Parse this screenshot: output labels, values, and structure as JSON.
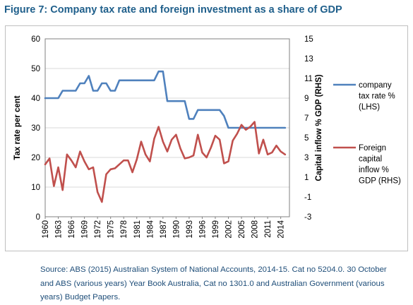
{
  "figure_title": "Figure 7: Company tax rate and foreign investment as a share of GDP",
  "source_note": "Source: ABS (2015) Australian System of National Accounts, 2014-15. Cat no 5204.0. 30 October and ABS (various years) Year Book Australia, Cat no 1301.0 and Australian Government (various years) Budget Papers.",
  "colors": {
    "tax": "#4f81bd",
    "capital": "#c0504d",
    "grid": "#d9d9d9",
    "axis": "#808080"
  },
  "chart_data": {
    "type": "line",
    "title": "",
    "ylabel": "Tax rate per cent",
    "y2label": "Capital inflow % GDP (RHS)",
    "ylim": [
      0,
      60
    ],
    "y2lim": [
      -3,
      15
    ],
    "yticks": [
      "0",
      "10",
      "20",
      "30",
      "40",
      "50",
      "60"
    ],
    "y2ticks": [
      "-3",
      "-1",
      "1",
      "3",
      "5",
      "7",
      "9",
      "11",
      "13",
      "15"
    ],
    "xlim": [
      1960,
      2016
    ],
    "xticks": [
      "1960",
      "1963",
      "1966",
      "1969",
      "1972",
      "1975",
      "1978",
      "1981",
      "1984",
      "1987",
      "1990",
      "1993",
      "1996",
      "1999",
      "2002",
      "2005",
      "2008",
      "2011",
      "2014"
    ],
    "grid": true,
    "legend_position": "right",
    "series": [
      {
        "name": "company tax rate % (LHS)",
        "axis": "left",
        "x": [
          1960,
          1961,
          1962,
          1963,
          1964,
          1965,
          1966,
          1967,
          1968,
          1969,
          1970,
          1971,
          1972,
          1973,
          1974,
          1975,
          1976,
          1977,
          1978,
          1979,
          1980,
          1981,
          1982,
          1983,
          1984,
          1985,
          1986,
          1987,
          1988,
          1989,
          1990,
          1991,
          1992,
          1993,
          1994,
          1995,
          1996,
          1997,
          1998,
          1999,
          2000,
          2001,
          2002,
          2003,
          2004,
          2005,
          2006,
          2007,
          2008,
          2009,
          2010,
          2011,
          2012,
          2013,
          2014,
          2015
        ],
        "values": [
          40,
          40,
          40,
          40,
          42.5,
          42.5,
          42.5,
          42.5,
          45,
          45,
          47.5,
          42.5,
          42.5,
          45,
          45,
          42.5,
          42.5,
          46,
          46,
          46,
          46,
          46,
          46,
          46,
          46,
          46,
          49,
          49,
          39,
          39,
          39,
          39,
          39,
          33,
          33,
          36,
          36,
          36,
          36,
          36,
          36,
          34,
          30,
          30,
          30,
          30,
          30,
          30,
          30,
          30,
          30,
          30,
          30,
          30,
          30,
          30
        ]
      },
      {
        "name": "Foreign capital inflow % GDP (RHS)",
        "axis": "right",
        "x": [
          1960,
          1961,
          1962,
          1963,
          1964,
          1965,
          1966,
          1967,
          1968,
          1969,
          1970,
          1971,
          1972,
          1973,
          1974,
          1975,
          1976,
          1977,
          1978,
          1979,
          1980,
          1981,
          1982,
          1983,
          1984,
          1985,
          1986,
          1987,
          1988,
          1989,
          1990,
          1991,
          1992,
          1993,
          1994,
          1995,
          1996,
          1997,
          1998,
          1999,
          2000,
          2001,
          2002,
          2003,
          2004,
          2005,
          2006,
          2007,
          2008,
          2009,
          2010,
          2011,
          2012,
          2013,
          2014,
          2015
        ],
        "values": [
          2.3,
          2.9,
          0.1,
          2.0,
          -0.3,
          3.3,
          2.7,
          2.0,
          3.6,
          2.6,
          1.8,
          2.0,
          -0.5,
          -1.5,
          1.3,
          1.8,
          1.9,
          2.3,
          2.7,
          2.7,
          1.5,
          2.8,
          4.6,
          3.3,
          2.6,
          4.9,
          6.1,
          4.6,
          3.6,
          4.8,
          5.3,
          3.9,
          2.9,
          3.0,
          3.2,
          5.3,
          3.5,
          3.0,
          4.0,
          5.2,
          4.8,
          2.4,
          2.6,
          4.7,
          5.4,
          6.3,
          5.8,
          6.1,
          6.6,
          3.4,
          4.8,
          3.3,
          3.5,
          4.2,
          3.6,
          3.3
        ]
      }
    ]
  }
}
